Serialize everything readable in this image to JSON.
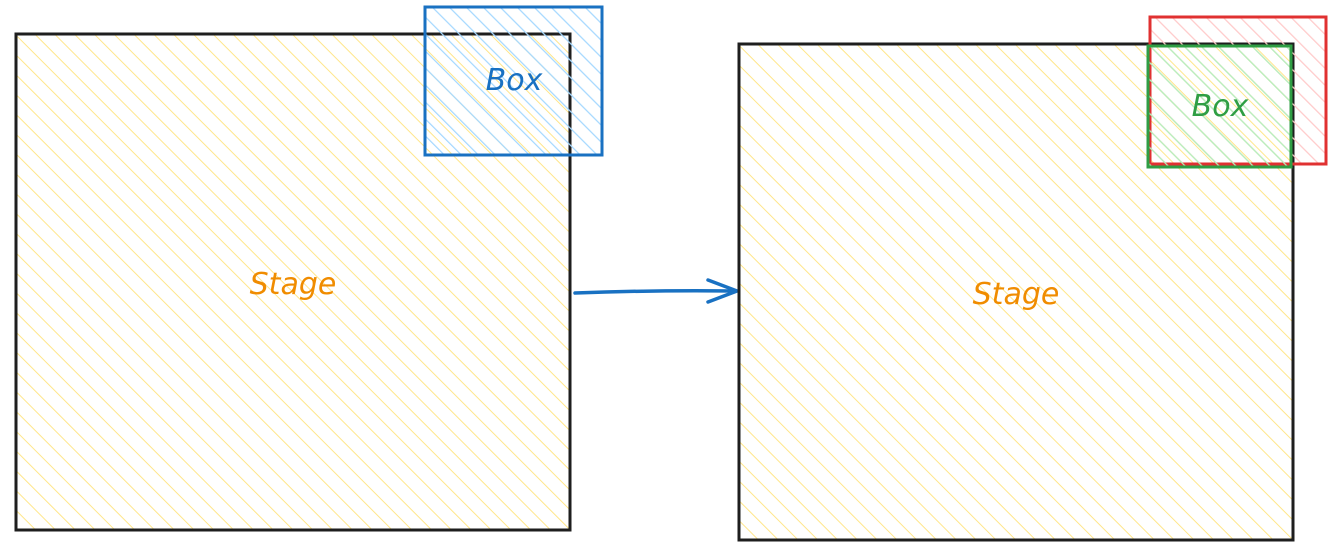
{
  "colors": {
    "stage_stroke": "#1e1e1e",
    "stage_fill": "#ffe68a",
    "stage_label": "#f08c00",
    "box_before_stroke": "#1971c2",
    "box_before_fill": "#a5d8ff",
    "box_after_stroke": "#2f9e44",
    "box_after_fill": "#b2f2bb",
    "box_original_stroke": "#e03131",
    "box_original_fill": "#ffc9c9",
    "arrow": "#1971c2"
  },
  "before": {
    "stage_label": "Stage",
    "box_label": "Box"
  },
  "after": {
    "stage_label": "Stage",
    "box_label": "Box"
  }
}
